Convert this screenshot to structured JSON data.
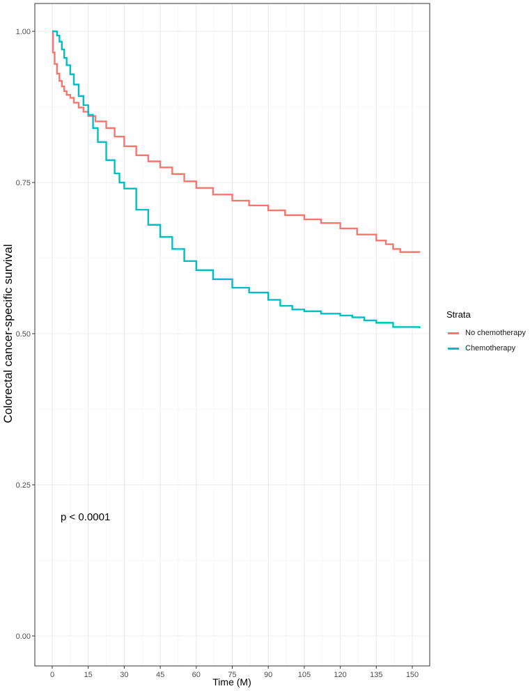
{
  "chart_data": {
    "type": "line",
    "subtype": "kaplan-meier step",
    "title": "",
    "xlabel": "Time (M)",
    "ylabel": "Colorectal cancer-specific survival",
    "xlim": [
      -8,
      157
    ],
    "ylim": [
      -0.05,
      1.05
    ],
    "x_ticks": [
      0,
      15,
      30,
      45,
      60,
      75,
      90,
      105,
      120,
      135,
      150
    ],
    "y_ticks": [
      0.0,
      0.25,
      0.5,
      0.75,
      1.0
    ],
    "y_tick_labels": [
      "0.00",
      "0.25",
      "0.50",
      "0.75",
      "1.00"
    ],
    "grid": true,
    "legend": {
      "title": "Strata",
      "position": "right",
      "entries": [
        {
          "label": "No chemotherapy",
          "color": "#F8766D"
        },
        {
          "label": "Chemotherapy",
          "color": "#00BFC4"
        }
      ]
    },
    "annotations": [
      {
        "text": "p < 0.0001",
        "x": 3,
        "y": 0.19
      }
    ],
    "series": [
      {
        "name": "No chemotherapy",
        "color": "#F8766D",
        "x": [
          0,
          0.3,
          1,
          2,
          3,
          4,
          5,
          6,
          7.5,
          9,
          11,
          13,
          15,
          18,
          22.5,
          26,
          30,
          35,
          40,
          45,
          50,
          55,
          60,
          67,
          75,
          82,
          90,
          97,
          105,
          112,
          120,
          127,
          135,
          139,
          142,
          145,
          153
        ],
        "y": [
          1.0,
          0.965,
          0.946,
          0.93,
          0.918,
          0.909,
          0.901,
          0.895,
          0.89,
          0.882,
          0.874,
          0.867,
          0.86,
          0.851,
          0.84,
          0.826,
          0.81,
          0.795,
          0.785,
          0.775,
          0.764,
          0.752,
          0.741,
          0.73,
          0.72,
          0.712,
          0.704,
          0.696,
          0.689,
          0.683,
          0.674,
          0.664,
          0.654,
          0.648,
          0.64,
          0.635,
          0.634
        ]
      },
      {
        "name": "Chemotherapy",
        "color": "#00BFC4",
        "x": [
          0,
          1,
          2,
          3,
          4,
          5,
          6,
          7.5,
          9,
          11,
          13,
          15,
          17,
          19,
          22.5,
          26,
          28,
          30,
          35,
          40,
          45,
          50,
          55,
          60,
          67,
          75,
          82,
          90,
          95,
          100,
          105,
          112,
          120,
          125,
          130,
          135,
          142,
          153
        ],
        "y": [
          1.0,
          1.0,
          0.993,
          0.983,
          0.97,
          0.956,
          0.944,
          0.929,
          0.912,
          0.893,
          0.878,
          0.862,
          0.84,
          0.817,
          0.787,
          0.765,
          0.75,
          0.74,
          0.705,
          0.68,
          0.66,
          0.64,
          0.62,
          0.605,
          0.59,
          0.576,
          0.568,
          0.556,
          0.546,
          0.54,
          0.537,
          0.533,
          0.53,
          0.527,
          0.522,
          0.518,
          0.511,
          0.509
        ]
      }
    ]
  },
  "legend": {
    "title": "Strata",
    "items": [
      {
        "label": "No chemotherapy",
        "color": "#F8766D"
      },
      {
        "label": "Chemotherapy",
        "color": "#00BFC4"
      }
    ]
  },
  "annotation": {
    "pvalue": "p < 0.0001"
  },
  "axes": {
    "xlabel": "Time (M)",
    "ylabel": "Colorectal cancer-specific survival"
  }
}
